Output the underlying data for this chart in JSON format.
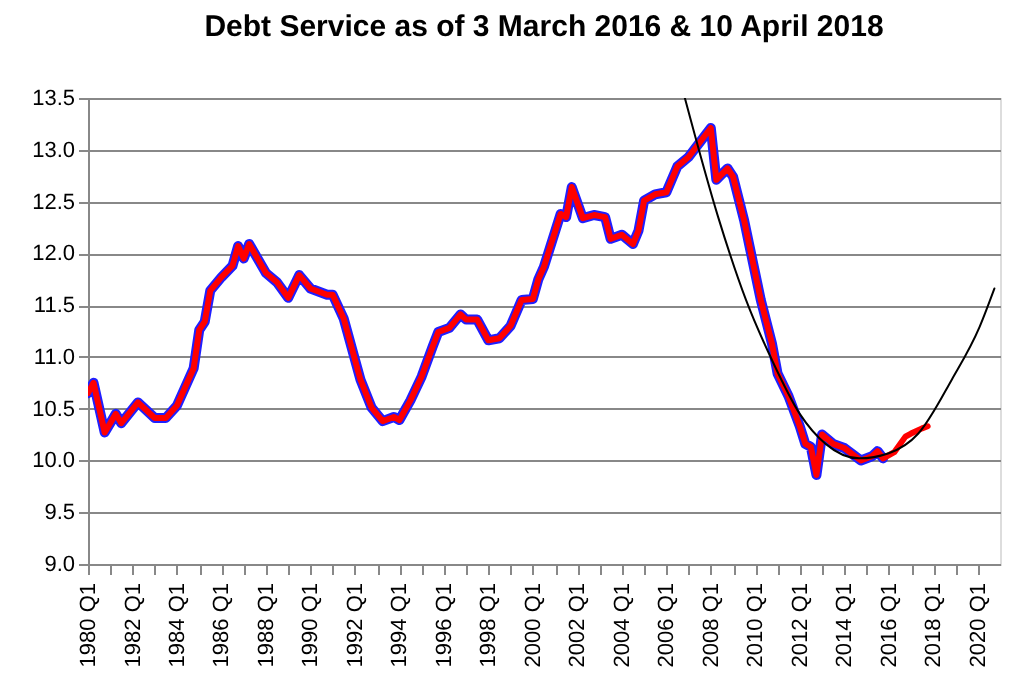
{
  "chart_data": {
    "type": "line",
    "title": "Debt Service as of 3 March 2016 & 10 April 2018",
    "xlim": [
      "1980-01",
      "2021-01"
    ],
    "ylim": [
      9.0,
      13.5
    ],
    "yticks": [
      {
        "value": 9,
        "label": "9.0"
      },
      9.5,
      {
        "value": 10,
        "label": "10.0"
      },
      10.5,
      {
        "value": 11,
        "label": "11.0"
      },
      11.5,
      {
        "value": 12,
        "label": "12.0"
      },
      12.5,
      {
        "value": 13,
        "label": "13.0"
      },
      13.5
    ],
    "xticks": [
      {
        "value": "1980-01",
        "label": "1980 Q1"
      },
      {
        "value": "1981-01",
        "label": null
      },
      {
        "value": "1982-01",
        "label": "1982 Q1"
      },
      {
        "value": "1983-01",
        "label": null
      },
      {
        "value": "1984-01",
        "label": "1984 Q1"
      },
      {
        "value": "1985-01",
        "label": null
      },
      {
        "value": "1986-01",
        "label": "1986 Q1"
      },
      {
        "value": "1987-01",
        "label": null
      },
      {
        "value": "1988-01",
        "label": "1988 Q1"
      },
      {
        "value": "1989-01",
        "label": null
      },
      {
        "value": "1990-01",
        "label": "1990 Q1"
      },
      {
        "value": "1991-01",
        "label": null
      },
      {
        "value": "1992-01",
        "label": "1992 Q1"
      },
      {
        "value": "1993-01",
        "label": null
      },
      {
        "value": "1994-01",
        "label": "1994 Q1"
      },
      {
        "value": "1995-01",
        "label": null
      },
      {
        "value": "1996-01",
        "label": "1996 Q1"
      },
      {
        "value": "1997-01",
        "label": null
      },
      {
        "value": "1998-01",
        "label": "1998 Q1"
      },
      {
        "value": "1999-01",
        "label": null
      },
      {
        "value": "2000-01",
        "label": "2000 Q1"
      },
      {
        "value": "2001-01",
        "label": null
      },
      {
        "value": "2002-01",
        "label": "2002 Q1"
      },
      {
        "value": "2003-01",
        "label": null
      },
      {
        "value": "2004-01",
        "label": "2004 Q1"
      },
      {
        "value": "2005-01",
        "label": null
      },
      {
        "value": "2006-01",
        "label": "2006 Q1"
      },
      {
        "value": "2007-01",
        "label": null
      },
      {
        "value": "2008-01",
        "label": "2008 Q1"
      },
      {
        "value": "2009-01",
        "label": null
      },
      {
        "value": "2010-01",
        "label": "2010 Q1"
      },
      {
        "value": "2011-01",
        "label": null
      },
      {
        "value": "2012-01",
        "label": "2012 Q1"
      },
      {
        "value": "2013-01",
        "label": null
      },
      {
        "value": "2014-01",
        "label": "2014 Q1"
      },
      {
        "value": "2015-01",
        "label": null
      },
      {
        "value": "2016-01",
        "label": "2016 Q1"
      },
      {
        "value": "2017-01",
        "label": null
      },
      {
        "value": "2018-01",
        "label": "2018 Q1"
      },
      {
        "value": "2019-01",
        "label": null
      },
      {
        "value": "2020-01",
        "label": "2020 Q1"
      }
    ],
    "grid": "y",
    "legend": false,
    "line_style": "solid",
    "marker": "none",
    "series": [
      {
        "color": "#1f1fff",
        "x": [
          "1980-01",
          "1980-04",
          "1980-10",
          "1981-04",
          "1981-07",
          "1982-04",
          "1983-01",
          "1983-07",
          "1984-01",
          "1984-10",
          "1985-01",
          "1985-04",
          "1985-07",
          "1986-01",
          "1986-07",
          "1986-10",
          "1987-01",
          "1987-04",
          "1988-01",
          "1988-07",
          "1989-01",
          "1989-07",
          "1990-01",
          "1990-10",
          "1991-01",
          "1991-07",
          "1992-04",
          "1992-10",
          "1993-04",
          "1993-10",
          "1994-01",
          "1994-07",
          "1995-01",
          "1995-07",
          "1995-10",
          "1996-04",
          "1996-10",
          "1997-01",
          "1997-07",
          "1998-01",
          "1998-07",
          "1999-01",
          "1999-07",
          "2000-01",
          "2000-04",
          "2000-07",
          "2001-04",
          "2001-07",
          "2001-10",
          "2002-04",
          "2002-10",
          "2003-04",
          "2003-07",
          "2004-01",
          "2004-07",
          "2004-10",
          "2005-01",
          "2005-07",
          "2006-01",
          "2006-07",
          "2007-01",
          "2008-01",
          "2008-04",
          "2008-10",
          "2009-01",
          "2009-07",
          "2009-10",
          "2010-04",
          "2010-10",
          "2011-01",
          "2011-07",
          "2012-01",
          "2012-04",
          "2012-07",
          "2012-10",
          "2013-01",
          "2013-07",
          "2014-01",
          "2014-07",
          "2014-10",
          "2015-04",
          "2015-07",
          "2015-10"
        ],
        "values": [
          10.65,
          10.75,
          10.27,
          10.45,
          10.36,
          10.56,
          10.41,
          10.41,
          10.53,
          10.89,
          11.26,
          11.34,
          11.64,
          11.77,
          11.88,
          12.07,
          11.95,
          12.09,
          11.81,
          11.72,
          11.57,
          11.79,
          11.66,
          11.6,
          11.6,
          11.37,
          10.78,
          10.51,
          10.38,
          10.42,
          10.39,
          10.58,
          10.81,
          11.1,
          11.24,
          11.28,
          11.41,
          11.36,
          11.36,
          11.16,
          11.18,
          11.3,
          11.55,
          11.56,
          11.75,
          11.87,
          12.38,
          12.35,
          12.64,
          12.34,
          12.37,
          12.35,
          12.14,
          12.18,
          12.09,
          12.22,
          12.51,
          12.57,
          12.59,
          12.84,
          12.93,
          13.21,
          12.71,
          12.82,
          12.74,
          12.32,
          12.06,
          11.55,
          11.13,
          10.84,
          10.62,
          10.33,
          10.16,
          10.13,
          9.86,
          10.25,
          10.16,
          10.12,
          10.04,
          10.0,
          10.04,
          10.09,
          10.02
        ]
      },
      {
        "color": "#ff0000",
        "x": [
          "1980-01",
          "1980-04",
          "1980-10",
          "1981-04",
          "1981-07",
          "1982-04",
          "1983-01",
          "1983-07",
          "1984-01",
          "1984-10",
          "1985-01",
          "1985-04",
          "1985-07",
          "1986-01",
          "1986-07",
          "1986-10",
          "1987-01",
          "1987-04",
          "1988-01",
          "1988-07",
          "1989-01",
          "1989-07",
          "1990-01",
          "1990-10",
          "1991-01",
          "1991-07",
          "1992-04",
          "1992-10",
          "1993-04",
          "1993-10",
          "1994-01",
          "1994-07",
          "1995-01",
          "1995-07",
          "1995-10",
          "1996-04",
          "1996-10",
          "1997-01",
          "1997-07",
          "1998-01",
          "1998-07",
          "1999-01",
          "1999-07",
          "2000-01",
          "2000-04",
          "2000-07",
          "2001-04",
          "2001-07",
          "2001-10",
          "2002-04",
          "2002-10",
          "2003-04",
          "2003-07",
          "2004-01",
          "2004-07",
          "2004-10",
          "2005-01",
          "2005-07",
          "2006-01",
          "2006-07",
          "2007-01",
          "2008-01",
          "2008-04",
          "2008-10",
          "2009-01",
          "2009-07",
          "2009-10",
          "2010-04",
          "2010-10",
          "2011-01",
          "2011-07",
          "2012-01",
          "2012-04",
          "2012-07",
          "2012-10",
          "2013-01",
          "2013-07",
          "2014-01",
          "2014-07",
          "2014-10",
          "2015-04",
          "2015-07",
          "2015-10",
          "2016-04",
          "2016-10",
          "2017-01",
          "2017-07",
          "2017-10"
        ],
        "values": [
          10.65,
          10.75,
          10.27,
          10.45,
          10.36,
          10.56,
          10.41,
          10.41,
          10.53,
          10.89,
          11.26,
          11.34,
          11.64,
          11.77,
          11.88,
          12.07,
          11.95,
          12.09,
          11.81,
          11.72,
          11.57,
          11.79,
          11.66,
          11.6,
          11.6,
          11.37,
          10.78,
          10.51,
          10.38,
          10.42,
          10.39,
          10.58,
          10.81,
          11.1,
          11.24,
          11.28,
          11.41,
          11.36,
          11.36,
          11.16,
          11.18,
          11.3,
          11.55,
          11.56,
          11.75,
          11.87,
          12.38,
          12.35,
          12.64,
          12.34,
          12.37,
          12.35,
          12.14,
          12.18,
          12.09,
          12.22,
          12.51,
          12.57,
          12.59,
          12.84,
          12.93,
          13.21,
          12.71,
          12.82,
          12.74,
          12.32,
          12.06,
          11.55,
          11.13,
          10.84,
          10.62,
          10.33,
          10.16,
          10.13,
          9.86,
          10.25,
          10.16,
          10.12,
          10.04,
          10.0,
          10.04,
          10.09,
          10.02,
          10.08,
          10.23,
          10.26,
          10.31,
          10.33
        ]
      },
      {
        "color": "#000000",
        "x": [
          "2006-11",
          "2008-05",
          "2009-08",
          "2010-10",
          "2012-01",
          "2013-03",
          "2014-09",
          "2016-01",
          "2017-05",
          "2018-11",
          "2020-02",
          "2020-10"
        ],
        "values": [
          13.5,
          12.35,
          11.55,
          10.97,
          10.45,
          10.16,
          10.02,
          10.07,
          10.26,
          10.78,
          11.29,
          11.66
        ]
      }
    ]
  }
}
